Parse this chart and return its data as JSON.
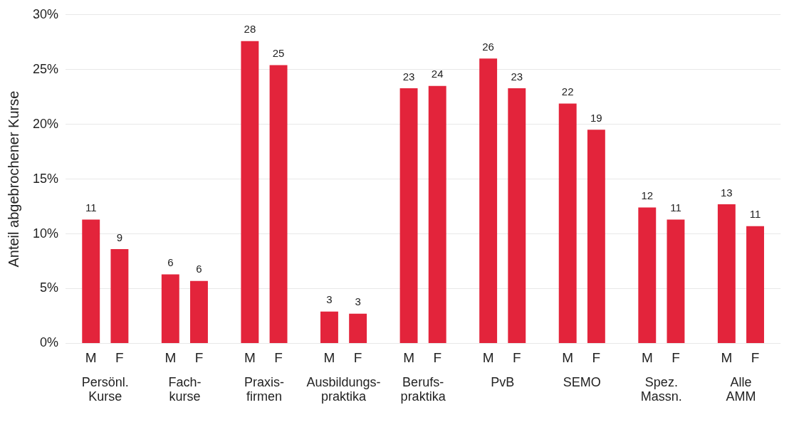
{
  "chart_data": {
    "type": "bar",
    "ylabel": "Anteil abgebrochener Kurse",
    "categories": [
      "Persönl.\nKurse",
      "Fach-\nkurse",
      "Praxis-\nfirmen",
      "Ausbildungs-\npraktika",
      "Berufs-\npraktika",
      "PvB",
      "SEMO",
      "Spez.\nMassn.",
      "Alle\nAMM"
    ],
    "series": [
      {
        "name": "M",
        "color": "#e3243b",
        "values": [
          11.3,
          6.3,
          27.6,
          2.9,
          23.3,
          26.0,
          21.9,
          12.4,
          12.7
        ],
        "value_labels": [
          "11",
          "6",
          "28",
          "3",
          "23",
          "26",
          "22",
          "12",
          "13"
        ]
      },
      {
        "name": "F",
        "color": "#e3243b",
        "values": [
          8.6,
          5.7,
          25.4,
          2.7,
          23.5,
          23.3,
          19.5,
          11.3,
          10.7
        ],
        "value_labels": [
          "9",
          "6",
          "25",
          "3",
          "24",
          "23",
          "19",
          "11",
          "11"
        ]
      }
    ],
    "ylim": [
      0,
      30
    ],
    "yticks": [
      {
        "value": 0,
        "label": "0%"
      },
      {
        "value": 5,
        "label": "5%"
      },
      {
        "value": 10,
        "label": "10%"
      },
      {
        "value": 15,
        "label": "15%"
      },
      {
        "value": 20,
        "label": "20%"
      },
      {
        "value": 25,
        "label": "25%"
      },
      {
        "value": 30,
        "label": "30%"
      }
    ],
    "grid": "y",
    "legend": false
  }
}
